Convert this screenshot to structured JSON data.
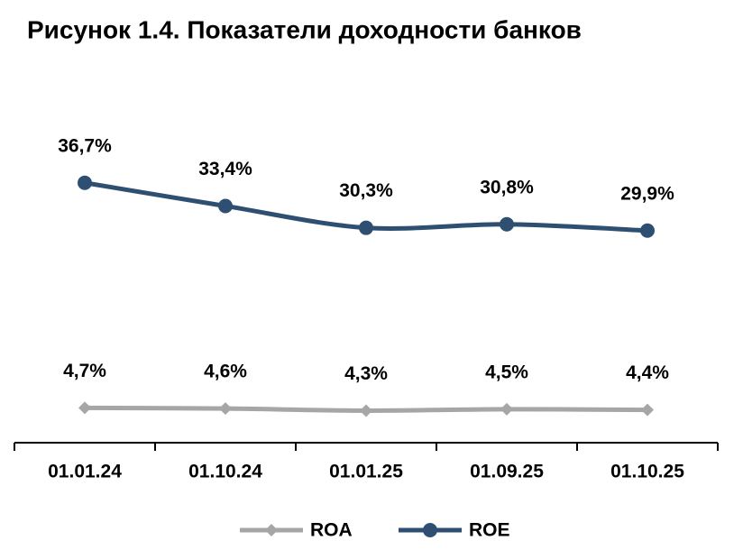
{
  "chart_data": {
    "type": "line",
    "title": "Рисунок 1.4. Показатели доходности банков",
    "categories": [
      "01.01.24",
      "01.10.24",
      "01.01.25",
      "01.09.25",
      "01.10.25"
    ],
    "series": [
      {
        "name": "ROA",
        "color": "#a6a6a6",
        "marker": "diamond",
        "values": [
          4.7,
          4.6,
          4.3,
          4.5,
          4.4
        ],
        "value_labels": [
          "4,7%",
          "4,6%",
          "4,3%",
          "4,5%",
          "4,4%"
        ]
      },
      {
        "name": "ROE",
        "color": "#2f4f72",
        "marker": "circle",
        "values": [
          36.7,
          33.4,
          30.3,
          30.8,
          29.9
        ],
        "value_labels": [
          "36,7%",
          "33,4%",
          "30,3%",
          "30,8%",
          "29,9%"
        ]
      }
    ],
    "ylim": [
      0,
      40
    ],
    "legend": "bottom"
  }
}
